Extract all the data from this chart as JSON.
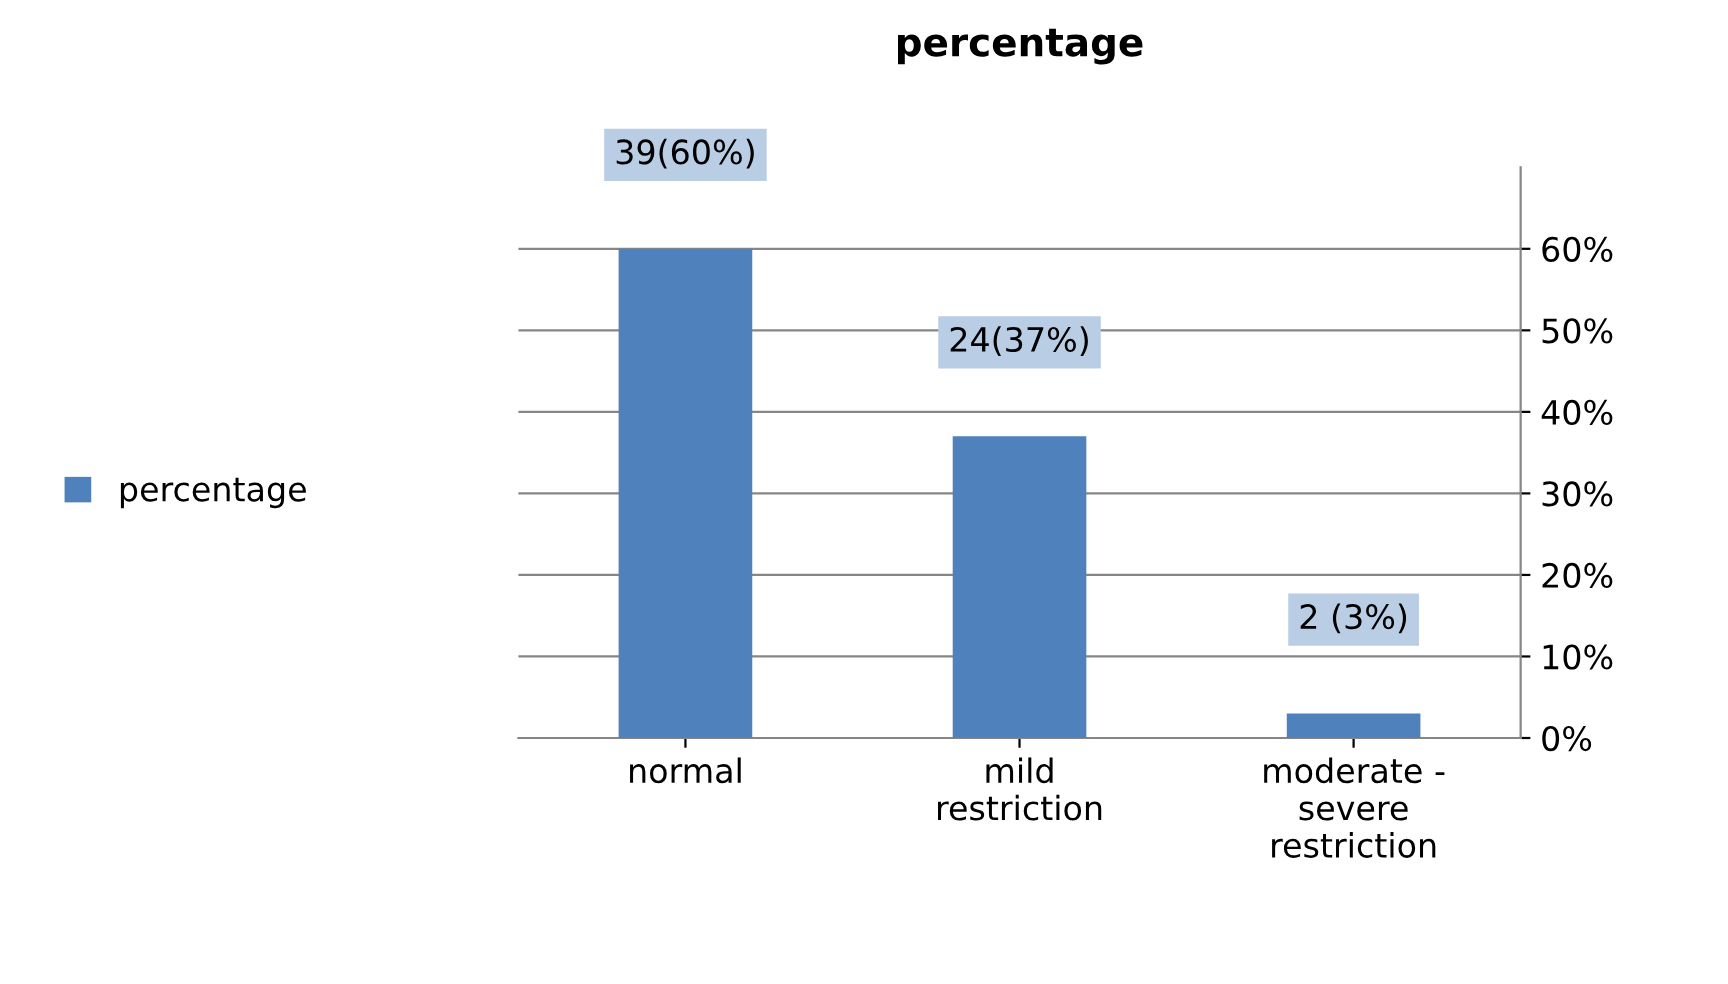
{
  "chart_data": {
    "type": "bar",
    "title": "percentage",
    "categories": [
      "normal",
      "mild restriction",
      "moderate - severe restriction"
    ],
    "series": [
      {
        "name": "percentage",
        "color": "#4f81bd",
        "values": [
          60,
          37,
          3
        ],
        "value_labels": [
          "39(60%)",
          "24(37%)",
          "2 (3%)"
        ]
      }
    ],
    "ylim": [
      0,
      70
    ],
    "yticks": [
      {
        "value": 0,
        "label": "0%"
      },
      {
        "value": 10,
        "label": "10%"
      },
      {
        "value": 20,
        "label": "20%"
      },
      {
        "value": 30,
        "label": "30%"
      },
      {
        "value": 40,
        "label": "40%"
      },
      {
        "value": 50,
        "label": "50%"
      },
      {
        "value": 60,
        "label": "60%"
      }
    ],
    "grid": "y",
    "legend": "left"
  }
}
